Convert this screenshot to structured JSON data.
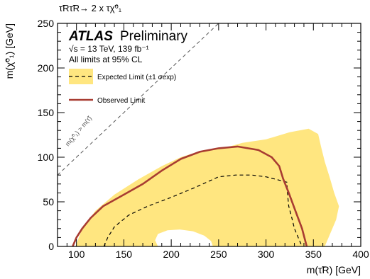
{
  "chart_data": {
    "type": "area",
    "process_label": "τ̃Rτ̃R→ 2 x τχ̃⁰₁",
    "experiment": "ATLAS",
    "status": "Preliminary",
    "energy_lumi": "√s = 13 TeV, 139 fb⁻¹",
    "cl_note": "All limits at 95% CL",
    "xlabel": "m(τ̃R) [GeV]",
    "ylabel": "m(χ̃⁰₁) [GeV]",
    "xlim": [
      80,
      400
    ],
    "ylim": [
      0,
      250
    ],
    "xticks": [
      100,
      150,
      200,
      250,
      300,
      350,
      400
    ],
    "yticks": [
      0,
      50,
      100,
      150,
      200,
      250
    ],
    "kinematic_label": "m(χ̃⁰₁) > m(τ̃)",
    "legend": {
      "placement": "top-left",
      "expected": "Expected Limit (±1 σexp)",
      "observed": "Observed Limit"
    },
    "colors": {
      "band": "#ffe680",
      "observed": "#a83c32",
      "expected": "#000000",
      "diagonal": "#555555"
    },
    "expected_band": {
      "outer": [
        [
          99,
          0
        ],
        [
          106,
          20
        ],
        [
          120,
          40
        ],
        [
          140,
          58
        ],
        [
          165,
          75
        ],
        [
          190,
          90
        ],
        [
          210,
          100
        ],
        [
          225,
          105
        ],
        [
          240,
          108
        ],
        [
          255,
          110
        ],
        [
          275,
          116
        ],
        [
          300,
          120
        ],
        [
          325,
          128
        ],
        [
          345,
          132
        ],
        [
          355,
          126
        ],
        [
          358,
          112
        ],
        [
          362,
          95
        ],
        [
          367,
          78
        ],
        [
          372,
          60
        ],
        [
          377,
          45
        ],
        [
          374,
          30
        ],
        [
          368,
          15
        ],
        [
          362,
          0
        ]
      ],
      "hole": [
        [
          186,
          0
        ],
        [
          183,
          7
        ],
        [
          186,
          14
        ],
        [
          196,
          18
        ],
        [
          209,
          19
        ],
        [
          223,
          17
        ],
        [
          235,
          12
        ],
        [
          242,
          6
        ],
        [
          244,
          0
        ]
      ]
    },
    "expected_line": [
      [
        129,
        0
      ],
      [
        133,
        10
      ],
      [
        140,
        22
      ],
      [
        155,
        35
      ],
      [
        175,
        45
      ],
      [
        200,
        55
      ],
      [
        225,
        66
      ],
      [
        250,
        78
      ],
      [
        268,
        80
      ],
      [
        285,
        80
      ],
      [
        300,
        78
      ],
      [
        315,
        74
      ],
      [
        322,
        72
      ],
      [
        323,
        55
      ],
      [
        324,
        45
      ],
      [
        327,
        33
      ],
      [
        330,
        20
      ],
      [
        334,
        10
      ],
      [
        338,
        0
      ]
    ],
    "observed_line": [
      [
        96,
        0
      ],
      [
        100,
        10
      ],
      [
        106,
        20
      ],
      [
        115,
        32
      ],
      [
        128,
        45
      ],
      [
        150,
        58
      ],
      [
        170,
        70
      ],
      [
        190,
        85
      ],
      [
        210,
        98
      ],
      [
        230,
        106
      ],
      [
        250,
        110
      ],
      [
        270,
        112
      ],
      [
        292,
        108
      ],
      [
        306,
        100
      ],
      [
        314,
        90
      ],
      [
        318,
        76
      ],
      [
        324,
        60
      ],
      [
        331,
        40
      ],
      [
        338,
        20
      ],
      [
        343,
        0
      ]
    ]
  }
}
